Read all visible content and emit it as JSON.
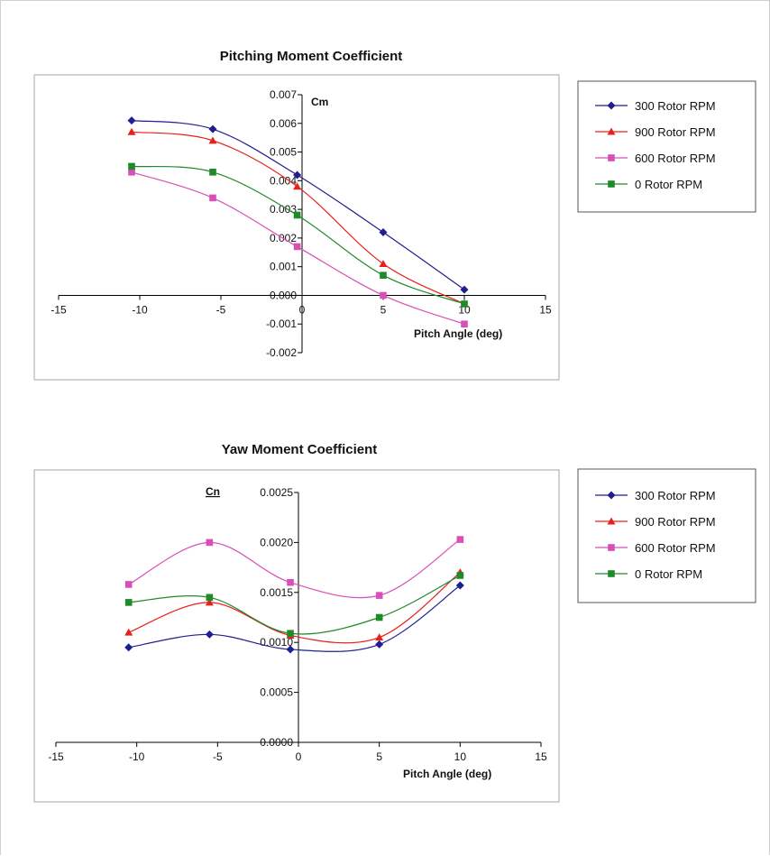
{
  "chart_data": [
    {
      "type": "line",
      "title": "Pitching Moment Coefficient",
      "xlabel": "Pitch Angle (deg)",
      "ylabel": "Cm",
      "xlim": [
        -15,
        15
      ],
      "ylim": [
        -0.002,
        0.007
      ],
      "xticks": [
        "-15",
        "-10",
        "-5",
        "0",
        "5",
        "10",
        "15"
      ],
      "yticks": [
        "-0.002",
        "-0.001",
        "0.000",
        "0.001",
        "0.002",
        "0.003",
        "0.004",
        "0.005",
        "0.006",
        "0.007"
      ],
      "grid": false,
      "legend": "right",
      "series": [
        {
          "name": "300 Rotor RPM",
          "color": "#1f1f8f",
          "marker": "diamond",
          "x": [
            -10.5,
            -5.5,
            -0.3,
            5,
            10
          ],
          "y": [
            0.0061,
            0.0058,
            0.0042,
            0.0022,
            0.0002
          ]
        },
        {
          "name": "900 Rotor RPM",
          "color": "#e8201c",
          "marker": "triangle",
          "x": [
            -10.5,
            -5.5,
            -0.3,
            5,
            10
          ],
          "y": [
            0.0057,
            0.0054,
            0.0038,
            0.0011,
            -0.0003
          ]
        },
        {
          "name": "600 Rotor RPM",
          "color": "#d94fb8",
          "marker": "square",
          "x": [
            -10.5,
            -5.5,
            -0.3,
            5,
            10
          ],
          "y": [
            0.0043,
            0.0034,
            0.0017,
            0.0,
            -0.001
          ]
        },
        {
          "name": "0 Rotor RPM",
          "color": "#1e8a2a",
          "marker": "square",
          "x": [
            -10.5,
            -5.5,
            -0.3,
            5,
            10
          ],
          "y": [
            0.0045,
            0.0043,
            0.0028,
            0.0007,
            -0.0003
          ]
        }
      ]
    },
    {
      "type": "line",
      "title": "Yaw Moment Coefficient",
      "xlabel": "Pitch Angle (deg)",
      "ylabel": "Cn",
      "xlim": [
        -15,
        15
      ],
      "ylim": [
        0,
        0.0025
      ],
      "xticks": [
        "-15",
        "-10",
        "-5",
        "0",
        "5",
        "10",
        "15"
      ],
      "yticks": [
        "0.0000",
        "0.0005",
        "0.0010",
        "0.0015",
        "0.0020",
        "0.0025"
      ],
      "grid": false,
      "legend": "right",
      "series": [
        {
          "name": "300 Rotor RPM",
          "color": "#1f1f8f",
          "marker": "diamond",
          "x": [
            -10.5,
            -5.5,
            -0.5,
            5,
            10
          ],
          "y": [
            0.00095,
            0.00108,
            0.00093,
            0.00098,
            0.00157
          ]
        },
        {
          "name": "900 Rotor RPM",
          "color": "#e8201c",
          "marker": "triangle",
          "x": [
            -10.5,
            -5.5,
            -0.5,
            5,
            10
          ],
          "y": [
            0.0011,
            0.0014,
            0.00107,
            0.00105,
            0.0017
          ]
        },
        {
          "name": "600 Rotor RPM",
          "color": "#d94fb8",
          "marker": "square",
          "x": [
            -10.5,
            -5.5,
            -0.5,
            5,
            10
          ],
          "y": [
            0.00158,
            0.002,
            0.0016,
            0.00147,
            0.00203
          ]
        },
        {
          "name": "0 Rotor RPM",
          "color": "#1e8a2a",
          "marker": "square",
          "x": [
            -10.5,
            -5.5,
            -0.5,
            5,
            10
          ],
          "y": [
            0.0014,
            0.00145,
            0.00109,
            0.00125,
            0.00167
          ]
        }
      ]
    }
  ]
}
